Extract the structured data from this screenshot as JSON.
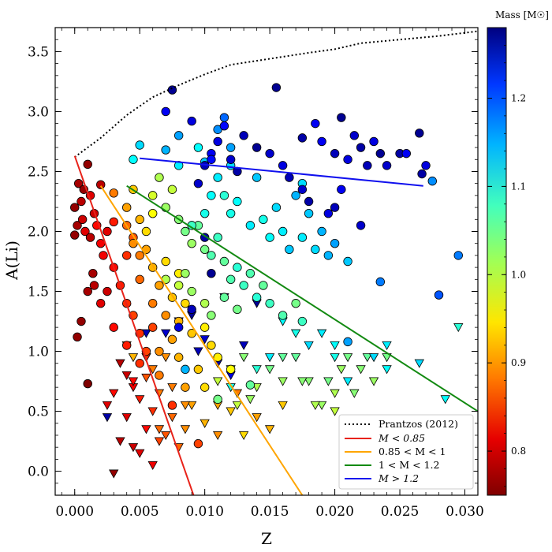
{
  "chart_data": {
    "type": "scatter",
    "xlabel": "Z",
    "ylabel": "A(Li)",
    "xlim": [
      -0.0015,
      0.031
    ],
    "ylim": [
      -0.2,
      3.7
    ],
    "x_ticks": [
      0.0,
      0.005,
      0.01,
      0.015,
      0.02,
      0.025,
      0.03
    ],
    "x_tick_labels": [
      "0.000",
      "0.005",
      "0.010",
      "0.015",
      "0.020",
      "0.025",
      "0.030"
    ],
    "y_ticks": [
      0.0,
      0.5,
      1.0,
      1.5,
      2.0,
      2.5,
      3.0,
      3.5
    ],
    "y_tick_labels": [
      "0.0",
      "0.5",
      "1.0",
      "1.5",
      "2.0",
      "2.5",
      "3.0",
      "3.5"
    ],
    "colorbar": {
      "label": "Mass [M☉]",
      "range": [
        0.75,
        1.28
      ],
      "ticks": [
        0.8,
        0.9,
        1.0,
        1.1,
        1.2
      ],
      "tick_labels": [
        "0.8",
        "0.9",
        "1.0",
        "1.1",
        "1.2"
      ]
    },
    "legend": {
      "position": "lower-right",
      "entries": [
        {
          "label": "Prantzos (2012)",
          "color": "#000000",
          "style": "dotted"
        },
        {
          "label": "M < 0.85",
          "color": "#e8231a",
          "style": "solid"
        },
        {
          "label": "0.85 < M < 1",
          "color": "#ffa500",
          "style": "solid"
        },
        {
          "label": "1 < M < 1.2",
          "color": "#138a12",
          "style": "solid"
        },
        {
          "label": "M > 1.2",
          "color": "#1010ee",
          "style": "solid"
        }
      ]
    },
    "lines": [
      {
        "name": "Prantzos (2012)",
        "color": "#000000",
        "style": "dotted",
        "x": [
          0.0,
          0.002,
          0.004,
          0.006,
          0.008,
          0.01,
          0.012,
          0.015,
          0.018,
          0.02,
          0.022,
          0.025,
          0.028,
          0.031
        ],
        "y": [
          2.62,
          2.78,
          2.97,
          3.12,
          3.22,
          3.31,
          3.39,
          3.44,
          3.49,
          3.52,
          3.57,
          3.6,
          3.63,
          3.67
        ]
      },
      {
        "name": "M < 0.85",
        "color": "#e8231a",
        "style": "solid",
        "x": [
          0.0,
          0.0093
        ],
        "y": [
          2.63,
          -0.25
        ]
      },
      {
        "name": "0.85 < M < 1",
        "color": "#ffa500",
        "style": "solid",
        "x": [
          0.002,
          0.0178
        ],
        "y": [
          2.38,
          -0.25
        ]
      },
      {
        "name": "1 < M < 1.2",
        "color": "#138a12",
        "style": "solid",
        "x": [
          0.004,
          0.031
        ],
        "y": [
          2.38,
          0.5
        ]
      },
      {
        "name": "M > 1.2",
        "color": "#1010ee",
        "style": "solid",
        "x": [
          0.005,
          0.0268
        ],
        "y": [
          2.61,
          2.38
        ]
      }
    ],
    "detections": [
      [
        0.001,
        2.56,
        0.76
      ],
      [
        0.002,
        2.39,
        0.78
      ],
      [
        0.0003,
        2.4,
        0.77
      ],
      [
        0.0007,
        2.35,
        0.76
      ],
      [
        0.0012,
        2.3,
        0.8
      ],
      [
        0.0,
        2.2,
        0.76
      ],
      [
        0.0005,
        2.25,
        0.78
      ],
      [
        0.0015,
        2.15,
        0.79
      ],
      [
        0.0002,
        2.05,
        0.77
      ],
      [
        0.0008,
        2.0,
        0.8
      ],
      [
        0.0,
        1.97,
        0.76
      ],
      [
        0.0012,
        1.95,
        0.78
      ],
      [
        0.002,
        1.9,
        0.81
      ],
      [
        0.0006,
        2.1,
        0.79
      ],
      [
        0.0017,
        2.05,
        0.82
      ],
      [
        0.0025,
        2.0,
        0.8
      ],
      [
        0.003,
        2.08,
        0.83
      ],
      [
        0.0022,
        1.8,
        0.81
      ],
      [
        0.0014,
        1.65,
        0.77
      ],
      [
        0.003,
        1.7,
        0.82
      ],
      [
        0.004,
        1.8,
        0.84
      ],
      [
        0.0045,
        1.95,
        0.86
      ],
      [
        0.0015,
        1.55,
        0.78
      ],
      [
        0.0025,
        1.5,
        0.79
      ],
      [
        0.001,
        1.5,
        0.77
      ],
      [
        0.0035,
        1.55,
        0.83
      ],
      [
        0.004,
        1.4,
        0.84
      ],
      [
        0.0005,
        1.25,
        0.76
      ],
      [
        0.0002,
        1.12,
        0.76
      ],
      [
        0.002,
        1.4,
        0.8
      ],
      [
        0.003,
        1.2,
        0.82
      ],
      [
        0.0045,
        1.3,
        0.85
      ],
      [
        0.004,
        1.05,
        0.83
      ],
      [
        0.005,
        1.15,
        0.84
      ],
      [
        0.006,
        1.2,
        0.85
      ],
      [
        0.0055,
        1.0,
        0.85
      ],
      [
        0.005,
        0.9,
        0.84
      ],
      [
        0.001,
        0.73,
        0.75
      ],
      [
        0.0075,
        0.55,
        0.84
      ],
      [
        0.0095,
        0.23,
        0.85
      ],
      [
        0.003,
        2.32,
        0.88
      ],
      [
        0.004,
        2.2,
        0.9
      ],
      [
        0.0045,
        2.35,
        0.92
      ],
      [
        0.005,
        2.1,
        0.91
      ],
      [
        0.0055,
        2.0,
        0.93
      ],
      [
        0.006,
        2.15,
        0.95
      ],
      [
        0.004,
        2.05,
        0.87
      ],
      [
        0.0045,
        1.9,
        0.89
      ],
      [
        0.005,
        1.8,
        0.88
      ],
      [
        0.0055,
        1.85,
        0.9
      ],
      [
        0.006,
        1.7,
        0.91
      ],
      [
        0.005,
        1.6,
        0.87
      ],
      [
        0.007,
        1.75,
        0.93
      ],
      [
        0.008,
        1.65,
        0.94
      ],
      [
        0.0065,
        1.55,
        0.9
      ],
      [
        0.0075,
        1.45,
        0.92
      ],
      [
        0.006,
        1.4,
        0.88
      ],
      [
        0.007,
        1.3,
        0.89
      ],
      [
        0.008,
        1.25,
        0.91
      ],
      [
        0.0085,
        1.4,
        0.93
      ],
      [
        0.009,
        1.15,
        0.92
      ],
      [
        0.01,
        1.2,
        0.94
      ],
      [
        0.0105,
        1.05,
        0.93
      ],
      [
        0.0075,
        1.1,
        0.9
      ],
      [
        0.0065,
        1.0,
        0.89
      ],
      [
        0.008,
        0.95,
        0.91
      ],
      [
        0.0095,
        0.85,
        0.92
      ],
      [
        0.011,
        0.95,
        0.94
      ],
      [
        0.012,
        0.85,
        0.95
      ],
      [
        0.0085,
        0.7,
        0.9
      ],
      [
        0.01,
        0.7,
        0.93
      ],
      [
        0.0065,
        0.8,
        0.88
      ],
      [
        0.006,
        2.3,
        0.97
      ],
      [
        0.0065,
        2.45,
        0.99
      ],
      [
        0.007,
        2.2,
        1.0
      ],
      [
        0.0075,
        2.35,
        0.98
      ],
      [
        0.008,
        2.1,
        1.01
      ],
      [
        0.0085,
        2.0,
        1.02
      ],
      [
        0.009,
        1.9,
        1.0
      ],
      [
        0.0095,
        2.05,
        1.03
      ],
      [
        0.01,
        1.85,
        1.02
      ],
      [
        0.0105,
        1.8,
        1.04
      ],
      [
        0.011,
        1.95,
        1.05
      ],
      [
        0.0115,
        1.75,
        1.03
      ],
      [
        0.012,
        1.6,
        1.04
      ],
      [
        0.0125,
        1.7,
        1.06
      ],
      [
        0.013,
        1.55,
        1.05
      ],
      [
        0.0135,
        1.65,
        1.04
      ],
      [
        0.014,
        1.45,
        1.06
      ],
      [
        0.0145,
        1.55,
        1.03
      ],
      [
        0.015,
        1.4,
        1.05
      ],
      [
        0.016,
        1.3,
        1.04
      ],
      [
        0.017,
        1.4,
        1.02
      ],
      [
        0.0175,
        1.25,
        1.05
      ],
      [
        0.009,
        1.5,
        1.0
      ],
      [
        0.01,
        1.4,
        0.99
      ],
      [
        0.0105,
        1.3,
        1.01
      ],
      [
        0.0115,
        1.45,
        1.03
      ],
      [
        0.0125,
        1.35,
        1.02
      ],
      [
        0.008,
        1.55,
        0.98
      ],
      [
        0.0085,
        1.65,
        1.0
      ],
      [
        0.007,
        1.6,
        0.99
      ],
      [
        0.011,
        0.6,
        1.02
      ],
      [
        0.0135,
        0.72,
        1.03
      ],
      [
        0.0115,
        2.3,
        1.06
      ],
      [
        0.012,
        2.15,
        1.07
      ],
      [
        0.0125,
        2.25,
        1.08
      ],
      [
        0.0135,
        2.05,
        1.09
      ],
      [
        0.0145,
        2.1,
        1.07
      ],
      [
        0.015,
        1.95,
        1.08
      ],
      [
        0.0155,
        2.2,
        1.1
      ],
      [
        0.016,
        2.0,
        1.09
      ],
      [
        0.0165,
        1.85,
        1.11
      ],
      [
        0.017,
        2.3,
        1.12
      ],
      [
        0.0175,
        2.4,
        1.1
      ],
      [
        0.018,
        2.15,
        1.11
      ],
      [
        0.019,
        2.0,
        1.12
      ],
      [
        0.02,
        1.9,
        1.13
      ],
      [
        0.021,
        1.75,
        1.11
      ],
      [
        0.0175,
        1.95,
        1.09
      ],
      [
        0.0185,
        1.85,
        1.1
      ],
      [
        0.0195,
        1.8,
        1.12
      ],
      [
        0.009,
        2.05,
        1.05
      ],
      [
        0.01,
        2.15,
        1.07
      ],
      [
        0.0105,
        2.3,
        1.08
      ],
      [
        0.011,
        2.45,
        1.09
      ],
      [
        0.012,
        2.55,
        1.1
      ],
      [
        0.014,
        2.45,
        1.11
      ],
      [
        0.005,
        2.72,
        1.1
      ],
      [
        0.007,
        2.68,
        1.12
      ],
      [
        0.008,
        2.55,
        1.09
      ],
      [
        0.0095,
        2.7,
        1.08
      ],
      [
        0.011,
        2.85,
        1.14
      ],
      [
        0.0115,
        2.95,
        1.16
      ],
      [
        0.012,
        2.7,
        1.13
      ],
      [
        0.0045,
        2.6,
        1.08
      ],
      [
        0.008,
        2.8,
        1.13
      ],
      [
        0.01,
        2.58,
        1.11
      ],
      [
        0.0275,
        2.42,
        1.14
      ],
      [
        0.0295,
        1.8,
        1.15
      ],
      [
        0.028,
        1.47,
        1.17
      ],
      [
        0.0235,
        1.58,
        1.15
      ],
      [
        0.021,
        1.08,
        1.13
      ],
      [
        0.0085,
        0.85,
        1.12
      ],
      [
        0.007,
        3.0,
        1.22
      ],
      [
        0.009,
        2.92,
        1.23
      ],
      [
        0.0095,
        2.4,
        1.24
      ],
      [
        0.01,
        2.55,
        1.25
      ],
      [
        0.0105,
        2.65,
        1.22
      ],
      [
        0.011,
        2.75,
        1.23
      ],
      [
        0.0115,
        2.88,
        1.21
      ],
      [
        0.012,
        2.6,
        1.24
      ],
      [
        0.0125,
        2.5,
        1.26
      ],
      [
        0.013,
        2.8,
        1.25
      ],
      [
        0.014,
        2.7,
        1.27
      ],
      [
        0.015,
        2.65,
        1.24
      ],
      [
        0.0155,
        3.2,
        1.27
      ],
      [
        0.016,
        2.55,
        1.23
      ],
      [
        0.0165,
        2.45,
        1.25
      ],
      [
        0.0175,
        2.35,
        1.24
      ],
      [
        0.018,
        2.25,
        1.26
      ],
      [
        0.019,
        2.75,
        1.22
      ],
      [
        0.02,
        2.65,
        1.25
      ],
      [
        0.0205,
        2.95,
        1.27
      ],
      [
        0.021,
        2.6,
        1.23
      ],
      [
        0.0215,
        2.8,
        1.24
      ],
      [
        0.022,
        2.7,
        1.26
      ],
      [
        0.0225,
        2.55,
        1.25
      ],
      [
        0.023,
        2.75,
        1.23
      ],
      [
        0.0235,
        2.65,
        1.27
      ],
      [
        0.024,
        2.55,
        1.24
      ],
      [
        0.025,
        2.65,
        1.26
      ],
      [
        0.0255,
        2.65,
        1.22
      ],
      [
        0.0265,
        2.82,
        1.27
      ],
      [
        0.0267,
        2.48,
        1.26
      ],
      [
        0.027,
        2.55,
        1.23
      ],
      [
        0.0185,
        2.9,
        1.22
      ],
      [
        0.0175,
        2.78,
        1.26
      ],
      [
        0.0075,
        3.18,
        1.27
      ],
      [
        0.0105,
        2.6,
        1.21
      ],
      [
        0.01,
        1.95,
        1.26
      ],
      [
        0.0105,
        1.65,
        1.27
      ],
      [
        0.009,
        1.35,
        1.25
      ],
      [
        0.008,
        1.2,
        1.23
      ],
      [
        0.0205,
        2.35,
        1.22
      ],
      [
        0.022,
        2.05,
        1.24
      ],
      [
        0.02,
        2.2,
        1.25
      ],
      [
        0.0195,
        2.15,
        1.23
      ]
    ],
    "upper_limits": [
      [
        0.0025,
        0.55,
        0.8
      ],
      [
        0.003,
        0.65,
        0.82
      ],
      [
        0.0035,
        0.9,
        0.78
      ],
      [
        0.004,
        0.8,
        0.79
      ],
      [
        0.0045,
        0.7,
        0.81
      ],
      [
        0.005,
        0.6,
        0.83
      ],
      [
        0.004,
        0.45,
        0.8
      ],
      [
        0.0035,
        0.25,
        0.78
      ],
      [
        0.0045,
        0.2,
        0.79
      ],
      [
        0.0055,
        0.35,
        0.82
      ],
      [
        0.006,
        0.5,
        0.84
      ],
      [
        0.005,
        0.15,
        0.8
      ],
      [
        0.006,
        0.05,
        0.81
      ],
      [
        0.003,
        -0.02,
        0.76
      ],
      [
        0.0045,
        0.75,
        0.82
      ],
      [
        0.0055,
        0.95,
        0.84
      ],
      [
        0.0055,
        0.78,
        0.86
      ],
      [
        0.0065,
        0.65,
        0.88
      ],
      [
        0.0075,
        0.45,
        0.87
      ],
      [
        0.0085,
        0.35,
        0.89
      ],
      [
        0.007,
        0.3,
        0.86
      ],
      [
        0.008,
        0.2,
        0.87
      ],
      [
        0.0065,
        0.25,
        0.85
      ],
      [
        0.009,
        0.55,
        0.9
      ],
      [
        0.01,
        0.4,
        0.91
      ],
      [
        0.011,
        0.3,
        0.89
      ],
      [
        0.012,
        0.5,
        0.92
      ],
      [
        0.013,
        0.3,
        0.93
      ],
      [
        0.014,
        0.45,
        0.9
      ],
      [
        0.015,
        0.35,
        0.91
      ],
      [
        0.0075,
        0.7,
        0.88
      ],
      [
        0.0085,
        0.55,
        0.89
      ],
      [
        0.006,
        0.85,
        0.88
      ],
      [
        0.007,
        0.95,
        0.89
      ],
      [
        0.004,
        1.05,
        0.9
      ],
      [
        0.0045,
        0.95,
        0.91
      ],
      [
        0.011,
        0.55,
        0.9
      ],
      [
        0.0125,
        0.65,
        0.88
      ],
      [
        0.0065,
        0.35,
        0.87
      ],
      [
        0.016,
        0.55,
        0.92
      ],
      [
        0.011,
        0.75,
        0.98
      ],
      [
        0.012,
        0.85,
        1.0
      ],
      [
        0.013,
        0.95,
        1.01
      ],
      [
        0.014,
        0.7,
        0.99
      ],
      [
        0.015,
        0.85,
        1.02
      ],
      [
        0.016,
        0.75,
        1.0
      ],
      [
        0.017,
        0.95,
        1.03
      ],
      [
        0.018,
        0.75,
        1.01
      ],
      [
        0.019,
        0.55,
        1.0
      ],
      [
        0.02,
        0.65,
        0.99
      ],
      [
        0.021,
        0.95,
        1.02
      ],
      [
        0.022,
        0.85,
        1.01
      ],
      [
        0.02,
        0.5,
        0.98
      ],
      [
        0.023,
        0.75,
        1.0
      ],
      [
        0.024,
        0.95,
        1.02
      ],
      [
        0.016,
        0.95,
        1.03
      ],
      [
        0.0175,
        0.75,
        1.01
      ],
      [
        0.0185,
        0.55,
        0.99
      ],
      [
        0.0195,
        0.75,
        1.02
      ],
      [
        0.0205,
        0.85,
        1.0
      ],
      [
        0.0215,
        0.65,
        1.01
      ],
      [
        0.0225,
        0.95,
        1.03
      ],
      [
        0.0125,
        0.55,
        0.98
      ],
      [
        0.0135,
        0.6,
        1.0
      ],
      [
        0.014,
        0.85,
        1.06
      ],
      [
        0.016,
        1.25,
        1.08
      ],
      [
        0.018,
        1.05,
        1.1
      ],
      [
        0.017,
        1.15,
        1.07
      ],
      [
        0.019,
        1.15,
        1.09
      ],
      [
        0.02,
        1.05,
        1.08
      ],
      [
        0.021,
        0.75,
        1.09
      ],
      [
        0.023,
        0.95,
        1.1
      ],
      [
        0.024,
        1.05,
        1.09
      ],
      [
        0.0265,
        0.9,
        1.1
      ],
      [
        0.0285,
        0.6,
        1.08
      ],
      [
        0.0295,
        1.2,
        1.06
      ],
      [
        0.024,
        0.85,
        1.08
      ],
      [
        0.02,
        0.95,
        1.07
      ],
      [
        0.015,
        0.95,
        1.09
      ],
      [
        0.012,
        0.7,
        1.07
      ],
      [
        0.0025,
        0.45,
        1.26
      ],
      [
        0.0055,
        1.15,
        1.25
      ],
      [
        0.007,
        1.15,
        1.24
      ],
      [
        0.008,
        1.25,
        1.23
      ],
      [
        0.009,
        1.3,
        1.27
      ],
      [
        0.01,
        1.1,
        1.24
      ],
      [
        0.011,
        0.9,
        1.26
      ],
      [
        0.012,
        0.8,
        1.23
      ],
      [
        0.013,
        1.05,
        1.25
      ],
      [
        0.014,
        1.4,
        1.27
      ],
      [
        0.0115,
        1.45,
        1.26
      ],
      [
        0.0095,
        1.0,
        1.25
      ]
    ]
  }
}
